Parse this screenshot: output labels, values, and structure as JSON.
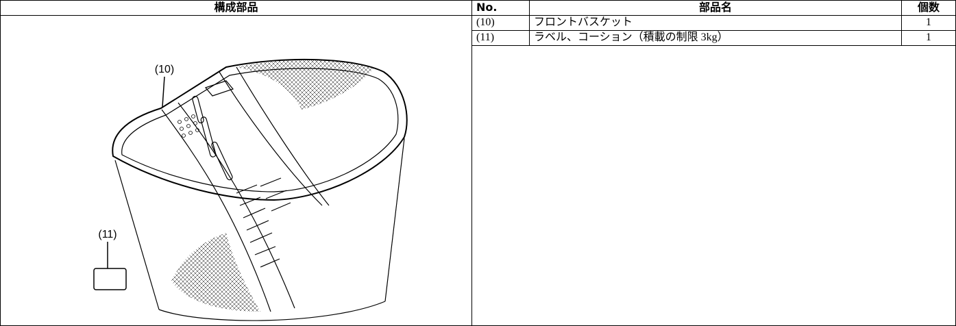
{
  "table": {
    "headers": [
      "構成部品",
      "No.",
      "部品名",
      "個数"
    ],
    "rows": [
      [
        "(10)",
        "フロントバスケット",
        1
      ],
      [
        "(11)",
        "ラベル、コーション（積載の制限 3kg）",
        1
      ]
    ]
  },
  "figure": {
    "callouts": [
      "(10)",
      "(11)"
    ]
  }
}
